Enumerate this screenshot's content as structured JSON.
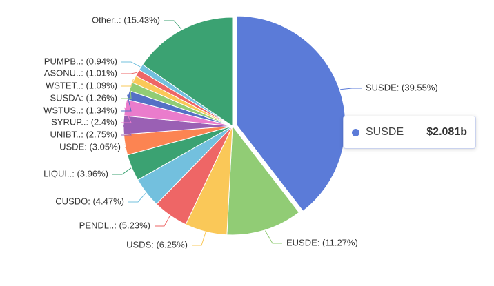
{
  "chart_data": {
    "type": "pie",
    "categories": [
      "SUSDE: (39.55%)",
      "EUSDE: (11.27%)",
      "USDS: (6.25%)",
      "PENDL..: (5.23%)",
      "CUSDO: (4.47%)",
      "LIQUI..: (3.96%)",
      "USDE: (3.05%)",
      "UNIBT..: (2.75%)",
      "SYRUP..: (2.4%)",
      "WSTUS..: (1.34%)",
      "SUSDA: (1.26%)",
      "WSTET..: (1.09%)",
      "ASONU..: (1.01%)",
      "PUMPB..: (0.94%)",
      "Other..: (15.43%)"
    ],
    "values": [
      39.55,
      11.27,
      6.25,
      5.23,
      4.47,
      3.96,
      3.05,
      2.75,
      2.4,
      1.34,
      1.26,
      1.09,
      1.01,
      0.94,
      15.43
    ],
    "colors": [
      "#5b7bd8",
      "#91cc75",
      "#fac858",
      "#ee6666",
      "#73c0de",
      "#3ba272",
      "#fc8452",
      "#9a60b4",
      "#ea7ccc",
      "#5470c6",
      "#91cc75",
      "#fac858",
      "#ee6666",
      "#73c0de",
      "#3ba272"
    ],
    "highlighted": 0
  },
  "tooltip": {
    "name": "SUSDE",
    "value": "$2.081b"
  }
}
